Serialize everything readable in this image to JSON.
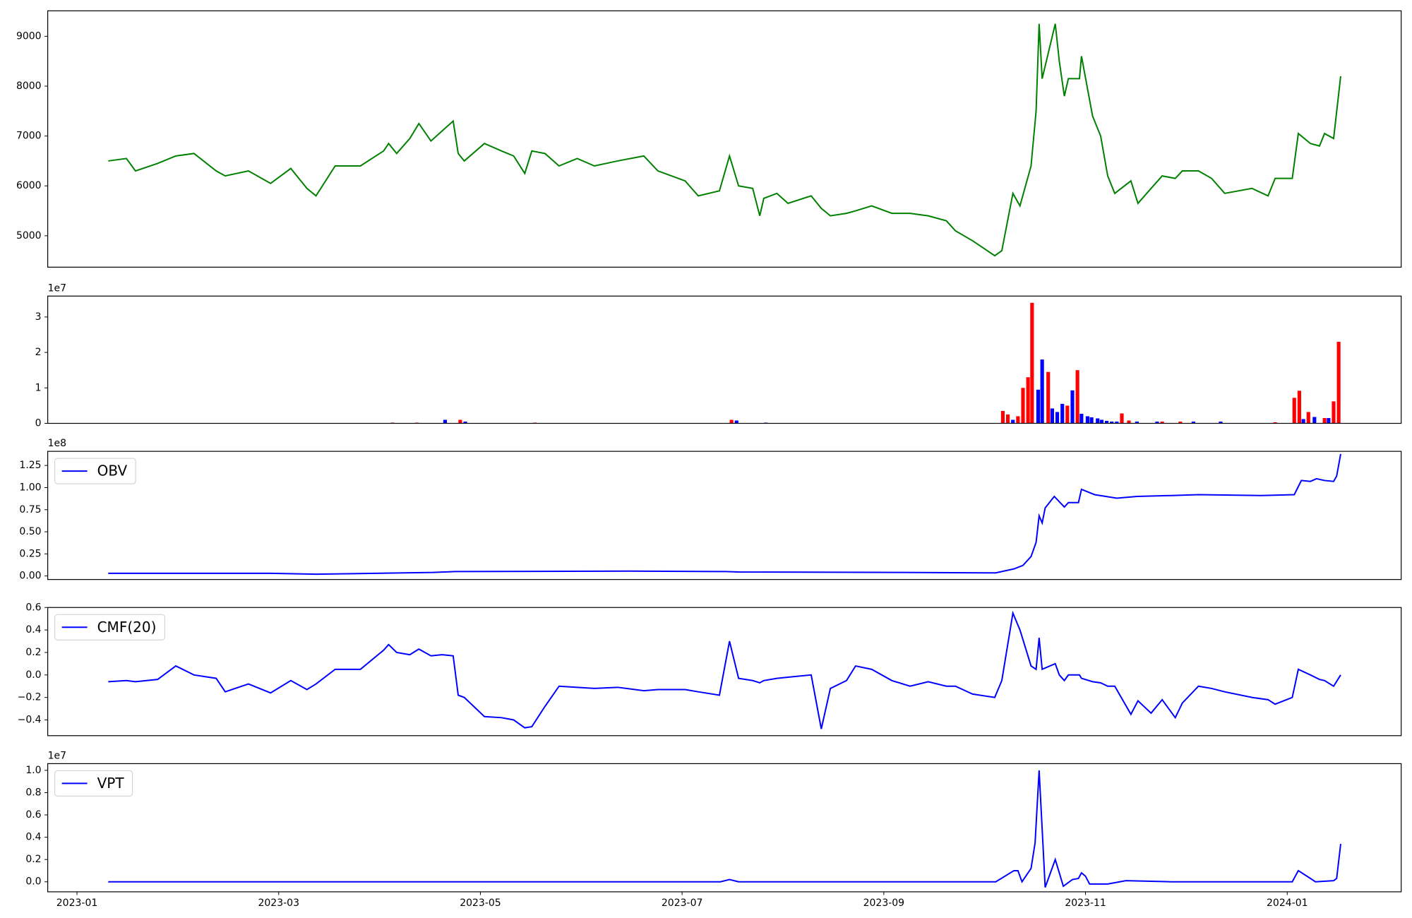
{
  "chart_data": [
    {
      "type": "line",
      "x": [
        0.31,
        0.49,
        0.58,
        0.8,
        0.98,
        1.16,
        1.38,
        1.47,
        1.7,
        1.92,
        2.12,
        2.28,
        2.37,
        2.56,
        2.81,
        3.04,
        3.09,
        3.17,
        3.3,
        3.39,
        3.51,
        3.62,
        3.73,
        3.78,
        3.84,
        4.04,
        4.21,
        4.33,
        4.44,
        4.51,
        4.64,
        4.78,
        4.96,
        5.13,
        5.36,
        5.62,
        5.76,
        6.03,
        6.16,
        6.37,
        6.47,
        6.56,
        6.7,
        6.77,
        6.81,
        6.94,
        7.05,
        7.28,
        7.38,
        7.47,
        7.63,
        7.72,
        7.88,
        8.08,
        8.26,
        8.44,
        8.62,
        8.71,
        8.88,
        9.1,
        9.17,
        9.28,
        9.35,
        9.46,
        9.51,
        9.54,
        9.57,
        9.7,
        9.74,
        9.79,
        9.83,
        9.94,
        9.96,
        10.07,
        10.15,
        10.22,
        10.29,
        10.45,
        10.52,
        10.65,
        10.76,
        10.89,
        10.96,
        11.12,
        11.25,
        11.38,
        11.65,
        11.81,
        11.88,
        12.05,
        12.11,
        12.23,
        12.32,
        12.37,
        12.46,
        12.53
      ],
      "series": [
        {
          "color": "green",
          "values": [
            6500,
            6550,
            6300,
            6450,
            6600,
            6650,
            6300,
            6200,
            6300,
            6050,
            6350,
            5950,
            5800,
            6400,
            6400,
            6700,
            6850,
            6650,
            6950,
            7250,
            6900,
            7100,
            7300,
            6650,
            6500,
            6850,
            6700,
            6600,
            6250,
            6700,
            6650,
            6400,
            6550,
            6400,
            6500,
            6600,
            6300,
            6100,
            5800,
            5900,
            6600,
            6000,
            5950,
            5400,
            5750,
            5850,
            5650,
            5800,
            5550,
            5400,
            5450,
            5500,
            5600,
            5450,
            5450,
            5400,
            5300,
            5100,
            4900,
            4600,
            4700,
            5850,
            5600,
            6400,
            7500,
            9250,
            8150,
            9250,
            8500,
            7800,
            8150,
            8150,
            8600,
            7400,
            7000,
            6200,
            5850,
            6100,
            5650,
            5950,
            6200,
            6150,
            6300,
            6300,
            6150,
            5850,
            5950,
            5800,
            6150,
            6150,
            7050,
            6850,
            6800,
            7050,
            6950,
            8200
          ]
        }
      ],
      "xlim": [
        -0.29,
        13.13
      ],
      "ylim": [
        4370,
        9510
      ],
      "yticks": [
        5000,
        6000,
        7000,
        8000,
        9000
      ]
    },
    {
      "type": "bar",
      "series": [
        {
          "color": "red",
          "x": [
            3.13,
            3.37,
            3.8,
            4.54,
            6.49,
            9.18,
            9.23,
            9.33,
            9.38,
            9.43,
            9.47,
            9.63,
            9.82,
            9.92,
            10.36,
            10.43,
            10.76,
            10.94,
            11.88,
            12.07,
            12.12,
            12.21,
            12.37,
            12.46,
            12.51
          ],
          "values": [
            0.02,
            0.02,
            0.1,
            0.02,
            0.1,
            0.35,
            0.25,
            0.2,
            1.0,
            1.3,
            3.4,
            1.45,
            0.5,
            1.5,
            0.28,
            0.08,
            0.05,
            0.05,
            0.03,
            0.72,
            0.92,
            0.32,
            0.15,
            0.62,
            2.3
          ]
        },
        {
          "color": "blue",
          "x": [
            3.65,
            3.85,
            6.54,
            6.83,
            9.28,
            9.53,
            9.57,
            9.67,
            9.72,
            9.77,
            9.87,
            9.96,
            10.02,
            10.06,
            10.12,
            10.16,
            10.21,
            10.26,
            10.31,
            10.51,
            10.71,
            11.07,
            11.34,
            12.16,
            12.27,
            12.41
          ],
          "values": [
            0.1,
            0.05,
            0.08,
            0.02,
            0.1,
            0.95,
            1.8,
            0.42,
            0.32,
            0.55,
            0.93,
            0.27,
            0.2,
            0.17,
            0.14,
            0.1,
            0.07,
            0.05,
            0.05,
            0.05,
            0.05,
            0.05,
            0.05,
            0.12,
            0.18,
            0.15
          ]
        }
      ],
      "offset_text": "1e7",
      "xlim": [
        -0.29,
        13.13
      ],
      "ylim": [
        0,
        3.59
      ],
      "yticks": [
        0,
        1,
        2,
        3
      ]
    },
    {
      "type": "line",
      "x": [
        0.31,
        1.92,
        2.37,
        3.53,
        3.75,
        5.49,
        6.43,
        6.56,
        8.17,
        9.11,
        9.29,
        9.38,
        9.46,
        9.51,
        9.54,
        9.57,
        9.6,
        9.69,
        9.79,
        9.83,
        9.93,
        9.96,
        10.09,
        10.31,
        10.51,
        10.85,
        11.12,
        11.74,
        12.07,
        12.14,
        12.23,
        12.29,
        12.37,
        12.46,
        12.49,
        12.53
      ],
      "series": [
        {
          "name": "OBV",
          "color": "blue",
          "values": [
            0.03,
            0.03,
            0.02,
            0.04,
            0.05,
            0.055,
            0.05,
            0.045,
            0.04,
            0.035,
            0.08,
            0.12,
            0.22,
            0.38,
            0.68,
            0.6,
            0.77,
            0.9,
            0.78,
            0.83,
            0.83,
            0.98,
            0.92,
            0.88,
            0.9,
            0.91,
            0.92,
            0.91,
            0.92,
            1.08,
            1.07,
            1.1,
            1.08,
            1.07,
            1.13,
            1.38
          ]
        }
      ],
      "offset_text": "1e8",
      "legend": "upper left",
      "xlim": [
        -0.29,
        13.13
      ],
      "ylim": [
        -0.04,
        1.41
      ],
      "yticks": [
        {
          "value": 0,
          "label": "0.00"
        },
        {
          "value": 0.25,
          "label": "0.25"
        },
        {
          "value": 0.5,
          "label": "0.50"
        },
        {
          "value": 0.75,
          "label": "0.75"
        },
        {
          "value": 1,
          "label": "1.00"
        },
        {
          "value": 1.25,
          "label": "1.25"
        }
      ]
    },
    {
      "type": "line",
      "x": [
        0.31,
        0.49,
        0.58,
        0.8,
        0.98,
        1.16,
        1.38,
        1.47,
        1.7,
        1.92,
        2.12,
        2.28,
        2.37,
        2.56,
        2.81,
        3.04,
        3.09,
        3.17,
        3.3,
        3.39,
        3.51,
        3.62,
        3.73,
        3.78,
        3.84,
        4.04,
        4.21,
        4.33,
        4.44,
        4.51,
        4.64,
        4.78,
        4.96,
        5.13,
        5.36,
        5.62,
        5.76,
        6.03,
        6.16,
        6.37,
        6.47,
        6.56,
        6.7,
        6.77,
        6.81,
        6.94,
        7.05,
        7.28,
        7.38,
        7.47,
        7.63,
        7.72,
        7.88,
        8.08,
        8.26,
        8.44,
        8.62,
        8.71,
        8.88,
        9.1,
        9.17,
        9.28,
        9.35,
        9.46,
        9.51,
        9.54,
        9.57,
        9.7,
        9.74,
        9.79,
        9.83,
        9.94,
        9.96,
        10.07,
        10.15,
        10.22,
        10.29,
        10.45,
        10.52,
        10.65,
        10.76,
        10.89,
        10.96,
        11.12,
        11.25,
        11.38,
        11.65,
        11.81,
        11.88,
        12.05,
        12.11,
        12.23,
        12.32,
        12.37,
        12.46,
        12.53
      ],
      "series": [
        {
          "name": "CMF(20)",
          "color": "blue",
          "values": [
            -0.06,
            -0.05,
            -0.06,
            -0.04,
            0.08,
            0.0,
            -0.03,
            -0.15,
            -0.08,
            -0.16,
            -0.05,
            -0.13,
            -0.08,
            0.05,
            0.05,
            0.22,
            0.27,
            0.2,
            0.18,
            0.23,
            0.17,
            0.18,
            0.17,
            -0.18,
            -0.2,
            -0.37,
            -0.38,
            -0.4,
            -0.47,
            -0.46,
            -0.28,
            -0.1,
            -0.11,
            -0.12,
            -0.11,
            -0.14,
            -0.13,
            -0.13,
            -0.15,
            -0.18,
            0.3,
            -0.03,
            -0.05,
            -0.07,
            -0.05,
            -0.03,
            -0.02,
            0.0,
            -0.48,
            -0.12,
            -0.05,
            0.08,
            0.05,
            -0.05,
            -0.1,
            -0.06,
            -0.1,
            -0.1,
            -0.17,
            -0.2,
            -0.05,
            0.55,
            0.4,
            0.08,
            0.05,
            0.33,
            0.05,
            0.1,
            0.0,
            -0.05,
            0.0,
            0.0,
            -0.03,
            -0.06,
            -0.07,
            -0.1,
            -0.1,
            -0.35,
            -0.23,
            -0.34,
            -0.22,
            -0.38,
            -0.25,
            -0.1,
            -0.12,
            -0.15,
            -0.2,
            -0.22,
            -0.26,
            -0.2,
            0.05,
            0.0,
            -0.04,
            -0.05,
            -0.1,
            0.0
          ]
        }
      ],
      "legend": "upper left",
      "xlim": [
        -0.29,
        13.13
      ],
      "ylim": [
        -0.54,
        0.6
      ],
      "yticks": [
        {
          "value": -0.4,
          "label": "−0.4"
        },
        {
          "value": -0.2,
          "label": "−0.2"
        },
        {
          "value": 0,
          "label": "0.0"
        },
        {
          "value": 0.2,
          "label": "0.2"
        },
        {
          "value": 0.4,
          "label": "0.4"
        },
        {
          "value": 0.6,
          "label": "0.6"
        }
      ]
    },
    {
      "type": "line",
      "x": [
        0.31,
        6.38,
        6.47,
        6.56,
        9.11,
        9.29,
        9.33,
        9.37,
        9.46,
        9.5,
        9.54,
        9.56,
        9.6,
        9.7,
        9.78,
        9.87,
        9.93,
        9.96,
        10.0,
        10.04,
        10.22,
        10.4,
        10.85,
        11.74,
        12.05,
        12.11,
        12.23,
        12.28,
        12.46,
        12.49,
        12.53
      ],
      "series": [
        {
          "name": "VPT",
          "color": "blue",
          "values": [
            0,
            0,
            0.02,
            0,
            0,
            0.1,
            0.1,
            0,
            0.12,
            0.35,
            1.0,
            0.65,
            -0.05,
            0.2,
            -0.04,
            0.02,
            0.03,
            0.08,
            0.05,
            -0.02,
            -0.02,
            0.01,
            0,
            0,
            0,
            0.1,
            0.03,
            0,
            0.01,
            0.03,
            0.34
          ]
        }
      ],
      "offset_text": "1e7",
      "legend": "upper left",
      "xlim": [
        -0.29,
        13.13
      ],
      "ylim": [
        -0.09,
        1.06
      ],
      "yticks": [
        {
          "value": 0,
          "label": "0.0"
        },
        {
          "value": 0.2,
          "label": "0.2"
        },
        {
          "value": 0.4,
          "label": "0.4"
        },
        {
          "value": 0.6,
          "label": "0.6"
        },
        {
          "value": 0.8,
          "label": "0.8"
        },
        {
          "value": 1,
          "label": "1.0"
        }
      ],
      "xticks": [
        {
          "value": 0,
          "label": "2023-01"
        },
        {
          "value": 2,
          "label": "2023-03"
        },
        {
          "value": 4,
          "label": "2023-05"
        },
        {
          "value": 6,
          "label": "2023-07"
        },
        {
          "value": 8,
          "label": "2023-09"
        },
        {
          "value": 10,
          "label": "2023-11"
        },
        {
          "value": 12,
          "label": "2024-01"
        }
      ]
    }
  ]
}
